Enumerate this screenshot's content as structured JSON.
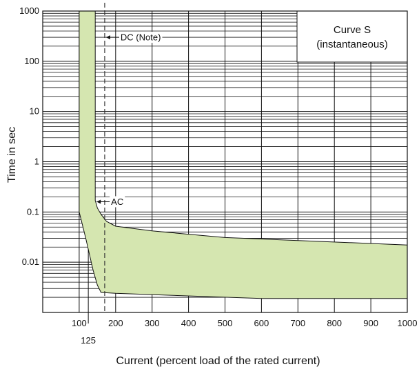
{
  "chart_data": {
    "type": "area",
    "title": "",
    "xlabel": "Current (percent load of the rated current)",
    "ylabel": "Time in sec",
    "x_scale": "linear",
    "y_scale": "log",
    "xlim": [
      0,
      1000
    ],
    "ylim": [
      0.001,
      1000
    ],
    "grid": true,
    "x_ticks": [
      100,
      200,
      300,
      400,
      500,
      600,
      700,
      800,
      900,
      1000
    ],
    "x_tick_labels": [
      "100",
      "200",
      "300",
      "400",
      "500",
      "600",
      "700",
      "800",
      "900",
      "1000"
    ],
    "x_extra_tick": {
      "value": 125,
      "label": "125"
    },
    "y_ticks": [
      0.01,
      0.1,
      1,
      10,
      100,
      1000
    ],
    "y_tick_labels": [
      "0.01",
      "0.1",
      "1",
      "10",
      "100",
      "1000"
    ],
    "band": {
      "color": "#d5e6b0",
      "left_boundary": [
        [
          100,
          1000
        ],
        [
          100,
          0.1
        ],
        [
          118,
          0.03
        ],
        [
          138,
          0.007
        ],
        [
          150,
          0.0035
        ],
        [
          160,
          0.0025
        ],
        [
          200,
          0.0024
        ],
        [
          600,
          0.0019
        ],
        [
          1000,
          0.0019
        ]
      ],
      "right_boundary": [
        [
          144,
          1000
        ],
        [
          144,
          0.17
        ],
        [
          150,
          0.12
        ],
        [
          160,
          0.09
        ],
        [
          175,
          0.065
        ],
        [
          200,
          0.052
        ],
        [
          300,
          0.042
        ],
        [
          500,
          0.031
        ],
        [
          700,
          0.027
        ],
        [
          1000,
          0.022
        ]
      ]
    },
    "reference_lines": [
      {
        "label": "DC (Note)",
        "x": 170,
        "style": "dashed",
        "arrow_y": 300
      },
      {
        "label": "AC",
        "x": 144,
        "style": "solid",
        "arrow_y": 0.16
      }
    ],
    "legend_box": {
      "position": "top-right",
      "lines": [
        "Curve S",
        "(instantaneous)"
      ]
    }
  }
}
